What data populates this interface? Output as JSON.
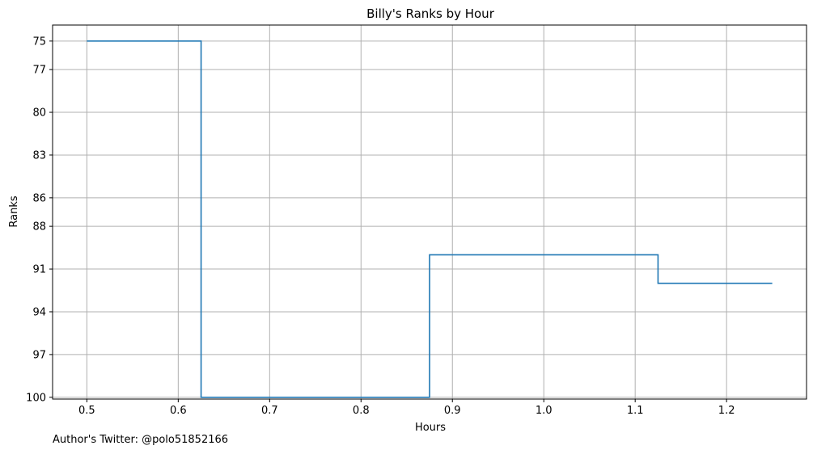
{
  "chart_data": {
    "type": "line",
    "drawstyle": "steps-post",
    "title": "Billy's Ranks by Hour",
    "xlabel": "Hours",
    "ylabel": "Ranks",
    "x": [
      0.5,
      0.625,
      0.875,
      1.125,
      1.25
    ],
    "y": [
      75,
      100,
      90,
      92,
      92
    ],
    "xlim": [
      0.4625,
      1.2875
    ],
    "ylim": [
      100.125,
      73.875
    ],
    "y_inverted": true,
    "xticks": [
      0.5,
      0.6,
      0.7,
      0.8,
      0.9,
      1.0,
      1.1,
      1.2
    ],
    "xtick_labels": [
      "0.5",
      "0.6",
      "0.7",
      "0.8",
      "0.9",
      "1.0",
      "1.1",
      "1.2"
    ],
    "yticks": [
      75,
      77,
      80,
      83,
      86,
      88,
      91,
      94,
      97,
      100
    ],
    "ytick_labels": [
      "75",
      "77",
      "80",
      "83",
      "86",
      "88",
      "91",
      "94",
      "97",
      "100"
    ],
    "grid": true,
    "line_color": "#1f77b4",
    "grid_color": "#b0b0b0"
  },
  "footer": {
    "credit": "Author's Twitter: @polo51852166"
  }
}
